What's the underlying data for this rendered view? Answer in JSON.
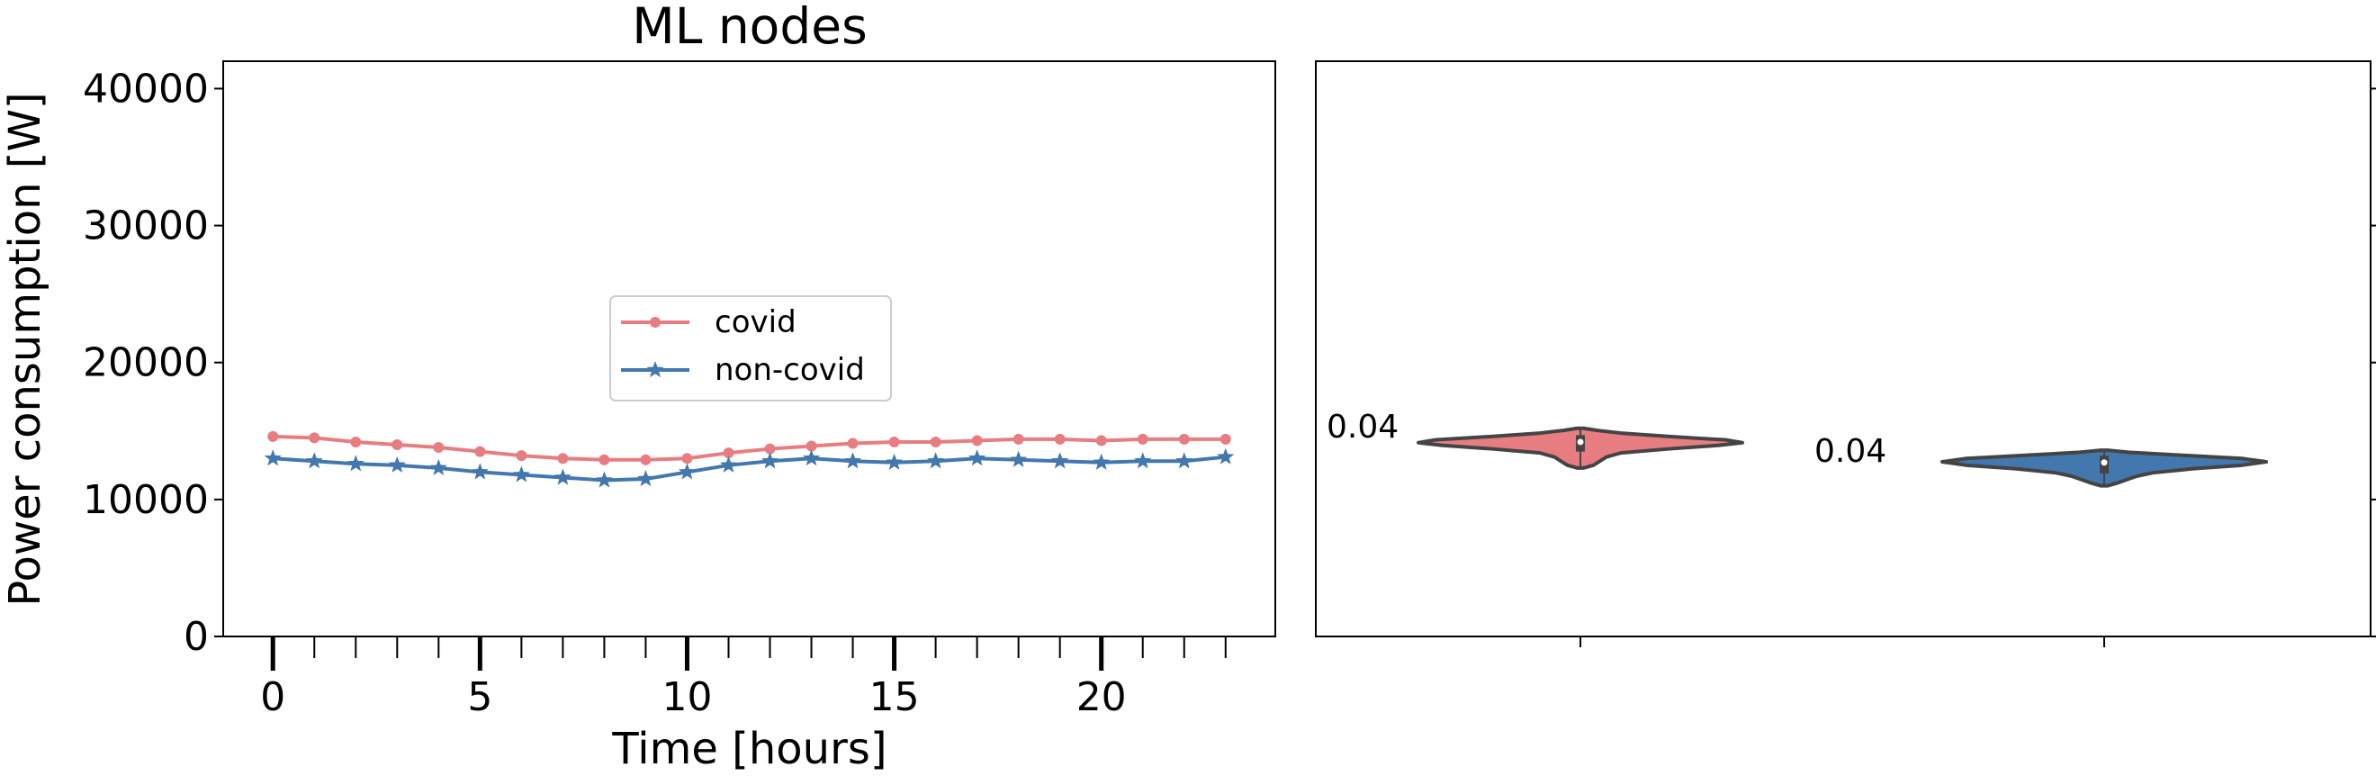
{
  "chart_data": [
    {
      "type": "line",
      "title": "ML nodes",
      "xlabel": "Time [hours]",
      "ylabel": "Power consumption [W]",
      "xlim": [
        -1.2,
        24.2
      ],
      "ylim": [
        0,
        42000
      ],
      "xticks": [
        0,
        5,
        10,
        15,
        20
      ],
      "xtick_labels": [
        "0",
        "5",
        "10",
        "15",
        "20"
      ],
      "yticks": [
        0,
        10000,
        20000,
        30000,
        40000
      ],
      "ytick_labels": [
        "0",
        "10000",
        "20000",
        "30000",
        "40000"
      ],
      "grid": false,
      "legend_position": "center",
      "x": [
        0,
        1,
        2,
        3,
        4,
        5,
        6,
        7,
        8,
        9,
        10,
        11,
        12,
        13,
        14,
        15,
        16,
        17,
        18,
        19,
        20,
        21,
        22,
        23
      ],
      "series": [
        {
          "name": "covid",
          "color": "#e77d80",
          "marker": "circle",
          "values": [
            14600,
            14500,
            14200,
            14000,
            13800,
            13500,
            13200,
            13000,
            12900,
            12900,
            13000,
            13400,
            13700,
            13900,
            14100,
            14200,
            14200,
            14300,
            14400,
            14400,
            14300,
            14400,
            14400,
            14400
          ]
        },
        {
          "name": "non-covid",
          "color": "#4278ad",
          "marker": "star",
          "values": [
            13000,
            12800,
            12600,
            12500,
            12300,
            12000,
            11800,
            11600,
            11400,
            11500,
            12000,
            12500,
            12800,
            13000,
            12800,
            12700,
            12800,
            13000,
            12900,
            12800,
            12700,
            12800,
            12800,
            13100
          ]
        }
      ]
    },
    {
      "type": "violin",
      "ylim": [
        0,
        42000
      ],
      "grid": false,
      "violins": [
        {
          "color": "#e77d80",
          "annotation": "0.04",
          "median": 14200,
          "q1": 13500,
          "q3": 14700,
          "min": 12300,
          "max": 15200,
          "profile": [
            [
              12300,
              0.02
            ],
            [
              12500,
              0.08
            ],
            [
              12800,
              0.12
            ],
            [
              13100,
              0.16
            ],
            [
              13400,
              0.25
            ],
            [
              13700,
              0.55
            ],
            [
              13950,
              0.85
            ],
            [
              14150,
              1.0
            ],
            [
              14350,
              0.9
            ],
            [
              14600,
              0.55
            ],
            [
              14850,
              0.25
            ],
            [
              15050,
              0.1
            ],
            [
              15200,
              0.02
            ]
          ]
        },
        {
          "color": "#4278ad",
          "annotation": "0.04",
          "median": 12700,
          "q1": 11900,
          "q3": 13200,
          "min": 11000,
          "max": 13600,
          "profile": [
            [
              11000,
              0.02
            ],
            [
              11200,
              0.08
            ],
            [
              11450,
              0.14
            ],
            [
              11700,
              0.2
            ],
            [
              11950,
              0.3
            ],
            [
              12250,
              0.55
            ],
            [
              12500,
              0.85
            ],
            [
              12750,
              1.0
            ],
            [
              13000,
              0.85
            ],
            [
              13250,
              0.45
            ],
            [
              13450,
              0.15
            ],
            [
              13600,
              0.02
            ]
          ]
        }
      ]
    }
  ]
}
